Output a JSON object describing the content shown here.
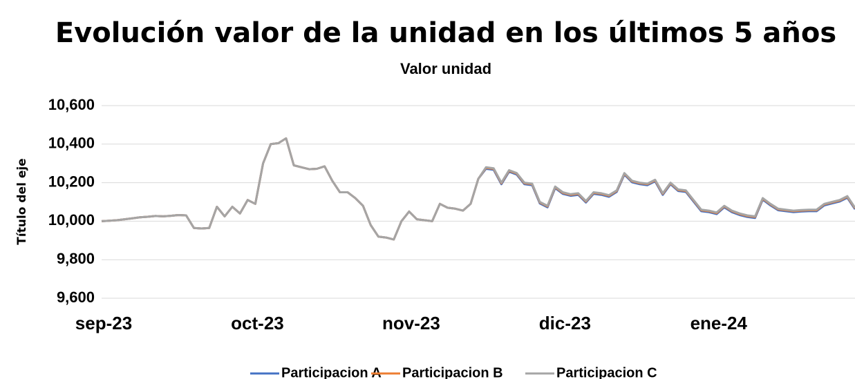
{
  "chart_data": {
    "type": "line",
    "title": "Evolución valor de la unidad en los últimos 5 años",
    "subtitle": "Valor unidad",
    "y_axis_label": "Título del eje",
    "categories": [
      "sep-23",
      null,
      null,
      null,
      null,
      null,
      null,
      null,
      null,
      null,
      null,
      null,
      null,
      null,
      null,
      null,
      null,
      null,
      null,
      null,
      "oct-23",
      null,
      null,
      null,
      null,
      null,
      null,
      null,
      null,
      null,
      null,
      null,
      null,
      null,
      null,
      null,
      null,
      null,
      null,
      null,
      "nov-23",
      null,
      null,
      null,
      null,
      null,
      null,
      null,
      null,
      null,
      null,
      null,
      null,
      null,
      null,
      null,
      null,
      null,
      null,
      null,
      "dic-23",
      null,
      null,
      null,
      null,
      null,
      null,
      null,
      null,
      null,
      null,
      null,
      null,
      null,
      null,
      null,
      null,
      null,
      null,
      null,
      "ene-24",
      null,
      null,
      null,
      null,
      null,
      null,
      null,
      null,
      null,
      null,
      null,
      null,
      null,
      null,
      null,
      null,
      null,
      null
    ],
    "series": [
      {
        "name": "Participacion A",
        "color": "#4472c4",
        "values": [
          10000,
          10002,
          10005,
          10010,
          10015,
          10020,
          10023,
          10027,
          10025,
          10028,
          10032,
          10030,
          9965,
          9962,
          9965,
          10075,
          10025,
          10075,
          10040,
          10110,
          10090,
          10300,
          10400,
          10405,
          10430,
          10290,
          10280,
          10270,
          10272,
          10285,
          10210,
          10150,
          10150,
          10120,
          10080,
          9980,
          9920,
          9915,
          9905,
          10000,
          10050,
          10010,
          10005,
          10000,
          10090,
          10070,
          10065,
          10055,
          10090,
          10220,
          10272,
          10267,
          10192,
          10257,
          10242,
          10192,
          10187,
          10092,
          10072,
          10172,
          10142,
          10132,
          10137,
          10097,
          10142,
          10137,
          10127,
          10152,
          10242,
          10202,
          10192,
          10187,
          10207,
          10137,
          10192,
          10157,
          10152,
          10102,
          10052,
          10047,
          10037,
          10072,
          10047,
          10032,
          10022,
          10017,
          10112,
          10082,
          10057,
          10052,
          10047,
          10050,
          10052,
          10052,
          10082,
          10092,
          10102,
          10122,
          10062
        ]
      },
      {
        "name": "Participacion B",
        "color": "#ed7d31",
        "values": [
          10000,
          10002,
          10005,
          10010,
          10015,
          10020,
          10023,
          10027,
          10025,
          10028,
          10032,
          10030,
          9965,
          9962,
          9965,
          10075,
          10025,
          10075,
          10040,
          10110,
          10090,
          10300,
          10400,
          10405,
          10430,
          10290,
          10280,
          10270,
          10272,
          10285,
          10210,
          10150,
          10150,
          10120,
          10080,
          9980,
          9920,
          9915,
          9905,
          10000,
          10050,
          10010,
          10005,
          10000,
          10090,
          10070,
          10065,
          10055,
          10090,
          10220,
          10277,
          10272,
          10197,
          10262,
          10247,
          10197,
          10192,
          10097,
          10077,
          10177,
          10147,
          10137,
          10142,
          10102,
          10147,
          10142,
          10132,
          10157,
          10247,
          10207,
          10197,
          10192,
          10212,
          10142,
          10197,
          10162,
          10157,
          10107,
          10057,
          10052,
          10042,
          10077,
          10052,
          10037,
          10027,
          10022,
          10117,
          10087,
          10062,
          10057,
          10052,
          10055,
          10057,
          10057,
          10087,
          10097,
          10107,
          10127,
          10067
        ]
      },
      {
        "name": "Participacion C",
        "color": "#a5a5a5",
        "values": [
          10000,
          10002,
          10005,
          10010,
          10015,
          10020,
          10023,
          10027,
          10025,
          10028,
          10032,
          10030,
          9965,
          9962,
          9965,
          10075,
          10025,
          10075,
          10040,
          10110,
          10090,
          10300,
          10400,
          10405,
          10430,
          10290,
          10280,
          10270,
          10272,
          10285,
          10210,
          10150,
          10150,
          10120,
          10080,
          9980,
          9920,
          9915,
          9905,
          10000,
          10050,
          10010,
          10005,
          10000,
          10090,
          10070,
          10065,
          10055,
          10090,
          10220,
          10280,
          10275,
          10200,
          10265,
          10250,
          10200,
          10195,
          10100,
          10080,
          10180,
          10150,
          10140,
          10145,
          10105,
          10150,
          10145,
          10135,
          10160,
          10250,
          10210,
          10200,
          10195,
          10215,
          10145,
          10200,
          10165,
          10160,
          10110,
          10060,
          10055,
          10045,
          10080,
          10055,
          10040,
          10030,
          10025,
          10120,
          10090,
          10065,
          10060,
          10055,
          10058,
          10060,
          10060,
          10090,
          10100,
          10110,
          10130,
          10070
        ]
      }
    ],
    "ylim": [
      9600,
      10600
    ],
    "yticks": [
      {
        "value": 9600,
        "label": "9,600"
      },
      {
        "value": 9800,
        "label": "9,800"
      },
      {
        "value": 10000,
        "label": "10,000"
      },
      {
        "value": 10200,
        "label": "10,200"
      },
      {
        "value": 10400,
        "label": "10,400"
      },
      {
        "value": 10600,
        "label": "10,600"
      }
    ],
    "grid": true,
    "legend": "bottom"
  }
}
